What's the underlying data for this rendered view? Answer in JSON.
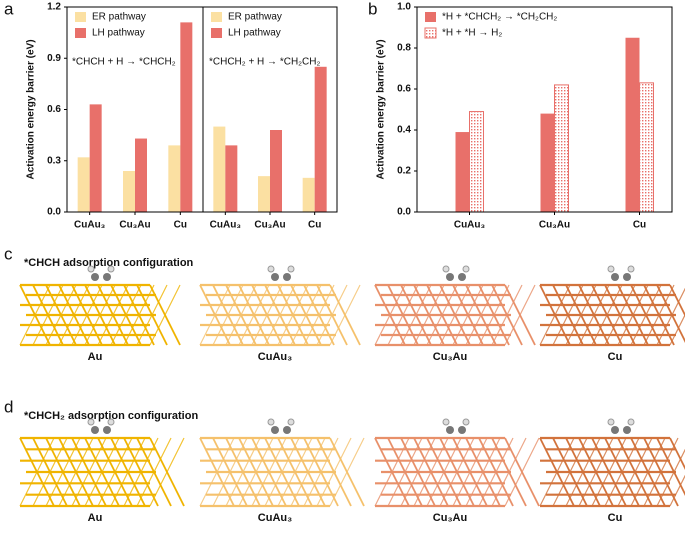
{
  "chart_data": [
    {
      "type": "bar",
      "panel": "a",
      "ylabel": "Activation energy barrier (eV)",
      "annotation": "*CHCH + H → *CHCH₂",
      "categories": [
        "CuAu₃",
        "Cu₃Au",
        "Cu"
      ],
      "series": [
        {
          "name": "ER pathway",
          "color": "#fbe0a2",
          "values": [
            0.32,
            0.24,
            0.39
          ]
        },
        {
          "name": "LH pathway",
          "color": "#e8706a",
          "values": [
            0.63,
            0.43,
            1.11
          ]
        }
      ],
      "ylim": [
        0,
        1.2
      ],
      "yticks": [
        {
          "value": 0,
          "label": "0.0"
        },
        0.3,
        0.6,
        0.9,
        1.2
      ]
    },
    {
      "type": "bar",
      "annotation": "*CHCH₂ + H → *CH₂CH₂",
      "categories": [
        "CuAu₃",
        "Cu₃Au",
        "Cu"
      ],
      "series": [
        {
          "name": "ER pathway",
          "color": "#fbe0a2",
          "values": [
            0.5,
            0.21,
            0.2
          ]
        },
        {
          "name": "LH pathway",
          "color": "#e8706a",
          "values": [
            0.39,
            0.48,
            0.85
          ]
        }
      ],
      "ylim": [
        0,
        1.2
      ]
    },
    {
      "type": "bar",
      "panel": "b",
      "ylabel": "Activation energy barrier (eV)",
      "categories": [
        "CuAu₃",
        "Cu₃Au",
        "Cu"
      ],
      "series": [
        {
          "name": "*H + *CHCH₂ → *CH₂CH₂",
          "color": "#e8706a",
          "hatch": false,
          "values": [
            0.39,
            0.48,
            0.85
          ]
        },
        {
          "name": "*H + *H → H₂",
          "color": "#e8706a",
          "hatch": true,
          "values": [
            0.49,
            0.62,
            0.63
          ]
        }
      ],
      "ylim": [
        0,
        1.0
      ],
      "yticks": [
        {
          "value": 0,
          "label": "0.0"
        },
        0.2,
        0.4,
        0.6,
        0.8,
        {
          "value": 1,
          "label": "1.0"
        }
      ]
    }
  ],
  "panels": [
    {
      "letter": "c",
      "title": "*CHCH adsorption configuration",
      "structures": [
        {
          "label": "Au",
          "color": "#f0b400"
        },
        {
          "label": "CuAu₃",
          "color": "#f5c16c"
        },
        {
          "label": "Cu₃Au",
          "color": "#e8906a"
        },
        {
          "label": "Cu",
          "color": "#d2733c"
        }
      ]
    },
    {
      "letter": "d",
      "title": "*CHCH₂ adsorption configuration",
      "structures": [
        {
          "label": "Au",
          "color": "#f0b400"
        },
        {
          "label": "CuAu₃",
          "color": "#f5c16c"
        },
        {
          "label": "Cu₃Au",
          "color": "#e8906a"
        },
        {
          "label": "Cu",
          "color": "#d2733c"
        }
      ]
    }
  ]
}
